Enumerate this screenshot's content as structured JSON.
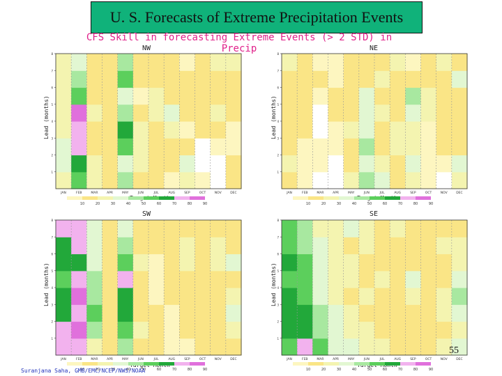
{
  "header": {
    "title": "U. S. Forecasts of Extreme Precipitation Events",
    "subtitle": "CFS Skill in forecasting Extreme Events (> 2 STD) in Precip"
  },
  "footer": {
    "credit": "Suranjana Saha, GMB/EMC/NCEP/NWS/NOAA",
    "page_number": "55"
  },
  "colors": {
    "c10": "#fdf6c0",
    "c20": "#fae586",
    "c30": "#f4f4b0",
    "c40": "#e2f7d2",
    "c50": "#a8e8a0",
    "c60": "#5ccf5c",
    "c70": "#22a83a",
    "c80": "#f2b2ee",
    "c90": "#e070dc"
  },
  "chart_data": [
    {
      "type": "heatmap",
      "title": "NW",
      "xlabel": "Target Month",
      "ylabel": "Lead (months)",
      "x": [
        "JAN",
        "FEB",
        "MAR",
        "APR",
        "MAY",
        "JUN",
        "JUL",
        "AUG",
        "SEP",
        "OCT",
        "NOV",
        "DEC"
      ],
      "y": [
        1,
        2,
        3,
        4,
        5,
        6,
        7,
        8
      ],
      "ylim": [
        0,
        8
      ],
      "y_ticks": [
        "1",
        "2",
        "3",
        "4",
        "5",
        "6",
        "7",
        "8"
      ],
      "legend_levels": [
        10,
        20,
        30,
        40,
        50,
        60,
        70,
        80,
        90
      ],
      "legend_labels": [
        "10",
        "20",
        "30",
        "40",
        "50",
        "60",
        "70",
        "80",
        "90"
      ],
      "values": [
        [
          30,
          60,
          30,
          20,
          50,
          20,
          20,
          10,
          30,
          10,
          0,
          20
        ],
        [
          40,
          70,
          30,
          20,
          40,
          30,
          20,
          20,
          40,
          0,
          0,
          20
        ],
        [
          40,
          80,
          20,
          20,
          60,
          30,
          20,
          20,
          20,
          0,
          10,
          10
        ],
        [
          30,
          80,
          20,
          20,
          70,
          30,
          20,
          30,
          10,
          20,
          20,
          10
        ],
        [
          30,
          90,
          30,
          20,
          50,
          20,
          30,
          40,
          20,
          20,
          30,
          20
        ],
        [
          30,
          60,
          20,
          20,
          40,
          10,
          30,
          20,
          20,
          20,
          20,
          20
        ],
        [
          30,
          50,
          20,
          20,
          60,
          20,
          20,
          20,
          20,
          20,
          20,
          20
        ],
        [
          30,
          40,
          20,
          20,
          50,
          20,
          20,
          20,
          10,
          20,
          30,
          30
        ]
      ]
    },
    {
      "type": "heatmap",
      "title": "NE",
      "xlabel": "Target Month",
      "ylabel": "Lead (months)",
      "x": [
        "JAN",
        "FEB",
        "MAR",
        "APR",
        "MAY",
        "JUN",
        "JUL",
        "AUG",
        "SEP",
        "OCT",
        "NOV",
        "DEC"
      ],
      "y": [
        1,
        2,
        3,
        4,
        5,
        6,
        7,
        8
      ],
      "ylim": [
        0,
        8
      ],
      "y_ticks": [
        "1",
        "2",
        "3",
        "4",
        "5",
        "6",
        "7",
        "8"
      ],
      "legend_levels": [
        10,
        20,
        30,
        40,
        50,
        60,
        70,
        80,
        90
      ],
      "legend_labels": [
        "10",
        "20",
        "30",
        "40",
        "50",
        "60",
        "70",
        "80",
        "90"
      ],
      "values": [
        [
          20,
          10,
          0,
          0,
          30,
          50,
          40,
          20,
          30,
          10,
          0,
          30
        ],
        [
          30,
          10,
          10,
          0,
          20,
          40,
          30,
          20,
          40,
          10,
          10,
          40
        ],
        [
          20,
          10,
          10,
          10,
          20,
          50,
          20,
          30,
          30,
          10,
          20,
          20
        ],
        [
          20,
          20,
          0,
          10,
          30,
          40,
          20,
          30,
          30,
          10,
          20,
          20
        ],
        [
          20,
          20,
          0,
          20,
          20,
          40,
          30,
          20,
          40,
          30,
          20,
          20
        ],
        [
          20,
          20,
          10,
          20,
          20,
          40,
          20,
          20,
          50,
          30,
          20,
          20
        ],
        [
          20,
          20,
          20,
          10,
          20,
          20,
          30,
          20,
          20,
          20,
          20,
          40
        ],
        [
          30,
          20,
          10,
          10,
          20,
          20,
          20,
          30,
          10,
          20,
          30,
          20
        ]
      ]
    },
    {
      "type": "heatmap",
      "title": "SW",
      "xlabel": "Target Month",
      "ylabel": "Lead (months)",
      "x": [
        "JAN",
        "FEB",
        "MAR",
        "APR",
        "MAY",
        "JUN",
        "JUL",
        "AUG",
        "SEP",
        "OCT",
        "NOV",
        "DEC"
      ],
      "y": [
        1,
        2,
        3,
        4,
        5,
        6,
        7,
        8
      ],
      "ylim": [
        0,
        8
      ],
      "y_ticks": [
        "1",
        "2",
        "3",
        "4",
        "5",
        "6",
        "7",
        "8"
      ],
      "legend_levels": [
        10,
        20,
        30,
        40,
        50,
        60,
        70,
        80,
        90
      ],
      "legend_labels": [
        "10",
        "20",
        "30",
        "40",
        "50",
        "60",
        "70",
        "80",
        "90"
      ],
      "values": [
        [
          80,
          80,
          30,
          20,
          50,
          20,
          20,
          10,
          10,
          20,
          20,
          20
        ],
        [
          80,
          90,
          50,
          20,
          60,
          30,
          20,
          10,
          20,
          20,
          20,
          30
        ],
        [
          70,
          80,
          60,
          20,
          70,
          20,
          20,
          10,
          20,
          20,
          20,
          40
        ],
        [
          70,
          90,
          50,
          20,
          70,
          20,
          10,
          20,
          20,
          20,
          20,
          30
        ],
        [
          60,
          80,
          50,
          20,
          80,
          20,
          10,
          20,
          20,
          20,
          20,
          20
        ],
        [
          70,
          70,
          40,
          20,
          60,
          30,
          10,
          20,
          30,
          20,
          30,
          40
        ],
        [
          70,
          80,
          40,
          20,
          50,
          20,
          20,
          20,
          30,
          20,
          30,
          20
        ],
        [
          80,
          80,
          40,
          20,
          40,
          20,
          20,
          20,
          20,
          20,
          20,
          20
        ]
      ]
    },
    {
      "type": "heatmap",
      "title": "SE",
      "xlabel": "Target Month",
      "ylabel": "Lead (months)",
      "x": [
        "JAN",
        "FEB",
        "MAR",
        "APR",
        "MAY",
        "JUN",
        "JUL",
        "AUG",
        "SEP",
        "OCT",
        "NOV",
        "DEC"
      ],
      "y": [
        1,
        2,
        3,
        4,
        5,
        6,
        7,
        8
      ],
      "ylim": [
        0,
        8
      ],
      "y_ticks": [
        "1",
        "2",
        "3",
        "4",
        "5",
        "6",
        "7",
        "8"
      ],
      "legend_levels": [
        10,
        20,
        30,
        40,
        50,
        60,
        70,
        80,
        90
      ],
      "legend_labels": [
        "10",
        "20",
        "30",
        "40",
        "50",
        "60",
        "70",
        "80",
        "90"
      ],
      "values": [
        [
          60,
          80,
          60,
          40,
          40,
          30,
          30,
          20,
          20,
          20,
          30,
          40
        ],
        [
          70,
          70,
          50,
          40,
          30,
          30,
          20,
          20,
          20,
          20,
          20,
          30
        ],
        [
          70,
          70,
          50,
          40,
          30,
          20,
          20,
          20,
          20,
          20,
          30,
          40
        ],
        [
          70,
          60,
          40,
          30,
          20,
          30,
          20,
          20,
          30,
          20,
          30,
          50
        ],
        [
          60,
          60,
          40,
          30,
          30,
          20,
          30,
          20,
          40,
          20,
          20,
          40
        ],
        [
          70,
          60,
          40,
          30,
          30,
          20,
          20,
          20,
          20,
          20,
          20,
          30
        ],
        [
          60,
          50,
          40,
          30,
          20,
          30,
          20,
          20,
          20,
          20,
          30,
          30
        ],
        [
          60,
          50,
          30,
          30,
          40,
          30,
          20,
          30,
          20,
          20,
          20,
          20
        ]
      ]
    }
  ]
}
